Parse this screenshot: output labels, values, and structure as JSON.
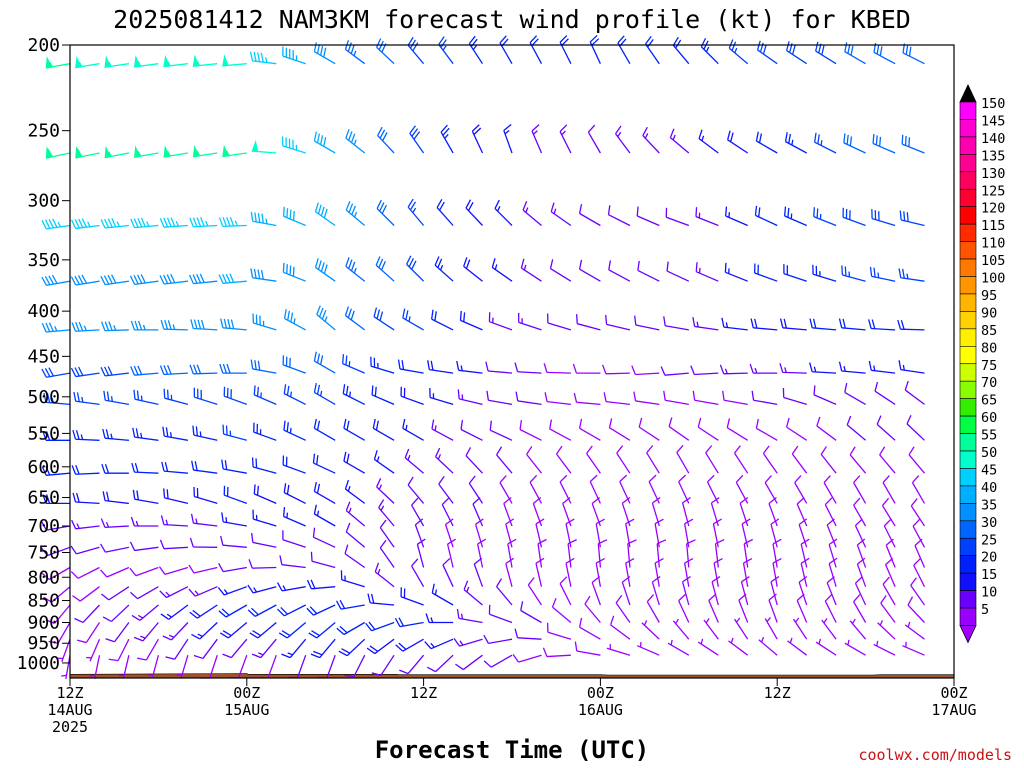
{
  "chart_data": {
    "type": "wind-profile",
    "title": "2025081412 NAM3KM forecast wind profile (kt) for KBED",
    "xlabel": "Forecast Time (UTC)",
    "ylabel": "",
    "credit": "coolwx.com/models",
    "y_axis": {
      "scale": "log-pressure",
      "range_hPa": [
        1040,
        200
      ],
      "ticks": [
        200,
        250,
        300,
        350,
        400,
        450,
        500,
        550,
        600,
        650,
        700,
        750,
        800,
        850,
        900,
        950,
        1000
      ]
    },
    "x_axis": {
      "range_hours": [
        0,
        60
      ],
      "ticks": [
        {
          "hour": 0,
          "line1": "12Z",
          "line2": "14AUG",
          "line3": "2025"
        },
        {
          "hour": 12,
          "line1": "00Z",
          "line2": "15AUG",
          "line3": ""
        },
        {
          "hour": 24,
          "line1": "12Z",
          "line2": "",
          "line3": ""
        },
        {
          "hour": 36,
          "line1": "00Z",
          "line2": "16AUG",
          "line3": ""
        },
        {
          "hour": 48,
          "line1": "12Z",
          "line2": "",
          "line3": ""
        },
        {
          "hour": 60,
          "line1": "00Z",
          "line2": "17AUG",
          "line3": ""
        }
      ]
    },
    "colorbar": {
      "labels": [
        150,
        145,
        140,
        135,
        130,
        125,
        120,
        115,
        110,
        105,
        100,
        95,
        90,
        85,
        80,
        75,
        70,
        65,
        60,
        55,
        50,
        45,
        40,
        35,
        30,
        25,
        20,
        15,
        10,
        5
      ],
      "colors": [
        "#ff00ff",
        "#ff00d0",
        "#ff00b0",
        "#ff0090",
        "#ff0060",
        "#ff0030",
        "#ff0000",
        "#ff2a00",
        "#ff5500",
        "#ff7800",
        "#ff9600",
        "#ffb400",
        "#ffd200",
        "#fff000",
        "#ffff00",
        "#ccff00",
        "#88ff00",
        "#33ee00",
        "#00ff44",
        "#00ff99",
        "#00ffcc",
        "#00d0ff",
        "#00b0ff",
        "#0090ff",
        "#0066ff",
        "#0040ff",
        "#0020ff",
        "#1010ff",
        "#6a00ff",
        "#9a00ff"
      ],
      "top_color": "#000000",
      "bottom_color": "#a000ff"
    },
    "terrain_color": "#a0522d",
    "terrain": [
      [
        0,
        1030
      ],
      [
        12,
        1028
      ],
      [
        12.1,
        1030
      ],
      [
        22.2,
        1030
      ],
      [
        22.3,
        1031
      ],
      [
        36,
        1031
      ],
      [
        36.5,
        1032
      ],
      [
        54.5,
        1032
      ],
      [
        55,
        1031
      ],
      [
        60,
        1031
      ]
    ],
    "wind_profile": {
      "levels_hPa": [
        210,
        265,
        320,
        370,
        420,
        470,
        510,
        560,
        610,
        660,
        700,
        740,
        780,
        820,
        860,
        900,
        940,
        980
      ],
      "hours": [
        0,
        2,
        4,
        6,
        8,
        10,
        12,
        14,
        16,
        18,
        20,
        22,
        24,
        26,
        28,
        30,
        32,
        34,
        36,
        38,
        40,
        42,
        44,
        46,
        48,
        50,
        52,
        54,
        56,
        58,
        60
      ],
      "dir_keyframes": {
        "hours": [
          0,
          12,
          18,
          24,
          30,
          36,
          42,
          48,
          54,
          60
        ],
        "dirs": [
          [
            260,
            265,
            300,
            320,
            330,
            335,
            320,
            305,
            300,
            295
          ],
          [
            258,
            262,
            300,
            325,
            340,
            330,
            310,
            300,
            295,
            290
          ],
          [
            262,
            268,
            305,
            320,
            315,
            300,
            290,
            295,
            290,
            280
          ],
          [
            260,
            265,
            305,
            315,
            305,
            300,
            295,
            290,
            285,
            275
          ],
          [
            265,
            275,
            310,
            300,
            290,
            285,
            280,
            275,
            275,
            270
          ],
          [
            260,
            270,
            300,
            280,
            275,
            270,
            265,
            270,
            275,
            280
          ],
          [
            275,
            290,
            300,
            290,
            280,
            275,
            280,
            280,
            300,
            310
          ],
          [
            270,
            285,
            300,
            300,
            295,
            300,
            305,
            300,
            310,
            315
          ],
          [
            265,
            280,
            295,
            310,
            320,
            325,
            330,
            325,
            320,
            320
          ],
          [
            270,
            290,
            300,
            320,
            330,
            335,
            335,
            330,
            330,
            330
          ],
          [
            260,
            280,
            300,
            330,
            340,
            340,
            345,
            340,
            330,
            325
          ],
          [
            250,
            275,
            295,
            340,
            345,
            350,
            350,
            345,
            335,
            330
          ],
          [
            240,
            260,
            285,
            345,
            350,
            355,
            355,
            350,
            340,
            335
          ],
          [
            230,
            250,
            265,
            330,
            345,
            350,
            350,
            350,
            340,
            330
          ],
          [
            220,
            240,
            245,
            290,
            320,
            340,
            345,
            345,
            335,
            320
          ],
          [
            210,
            230,
            230,
            260,
            290,
            320,
            335,
            340,
            330,
            310
          ],
          [
            200,
            220,
            220,
            240,
            260,
            300,
            320,
            330,
            320,
            300
          ],
          [
            190,
            200,
            200,
            220,
            240,
            280,
            300,
            310,
            300,
            290
          ]
        ]
      },
      "spd_keyframes": {
        "hours": [
          0,
          12,
          18,
          24,
          30,
          36,
          42,
          48,
          54,
          60
        ],
        "spds": [
          [
            55,
            52,
            38,
            28,
            22,
            20,
            22,
            28,
            30,
            30
          ],
          [
            58,
            55,
            40,
            28,
            15,
            12,
            14,
            22,
            30,
            32
          ],
          [
            45,
            45,
            40,
            25,
            15,
            12,
            10,
            20,
            28,
            28
          ],
          [
            38,
            40,
            38,
            28,
            15,
            10,
            12,
            20,
            25,
            25
          ],
          [
            35,
            38,
            35,
            25,
            14,
            10,
            12,
            18,
            22,
            22
          ],
          [
            28,
            32,
            30,
            22,
            12,
            8,
            10,
            14,
            16,
            16
          ],
          [
            26,
            28,
            25,
            18,
            12,
            8,
            8,
            10,
            12,
            12
          ],
          [
            24,
            25,
            22,
            16,
            10,
            8,
            8,
            8,
            10,
            10
          ],
          [
            22,
            22,
            20,
            14,
            10,
            8,
            8,
            8,
            8,
            8
          ],
          [
            18,
            20,
            18,
            12,
            9,
            8,
            8,
            8,
            8,
            8
          ],
          [
            12,
            15,
            15,
            12,
            9,
            8,
            8,
            8,
            8,
            8
          ],
          [
            10,
            12,
            12,
            10,
            9,
            8,
            8,
            8,
            8,
            8
          ],
          [
            8,
            10,
            12,
            10,
            9,
            8,
            8,
            8,
            8,
            8
          ],
          [
            8,
            15,
            18,
            12,
            9,
            8,
            8,
            8,
            8,
            8
          ],
          [
            8,
            20,
            22,
            18,
            10,
            8,
            8,
            8,
            8,
            8
          ],
          [
            8,
            18,
            22,
            20,
            12,
            8,
            8,
            8,
            8,
            8
          ],
          [
            6,
            12,
            18,
            18,
            12,
            8,
            7,
            7,
            7,
            7
          ],
          [
            5,
            8,
            12,
            12,
            10,
            8,
            6,
            6,
            6,
            6
          ]
        ]
      }
    }
  }
}
